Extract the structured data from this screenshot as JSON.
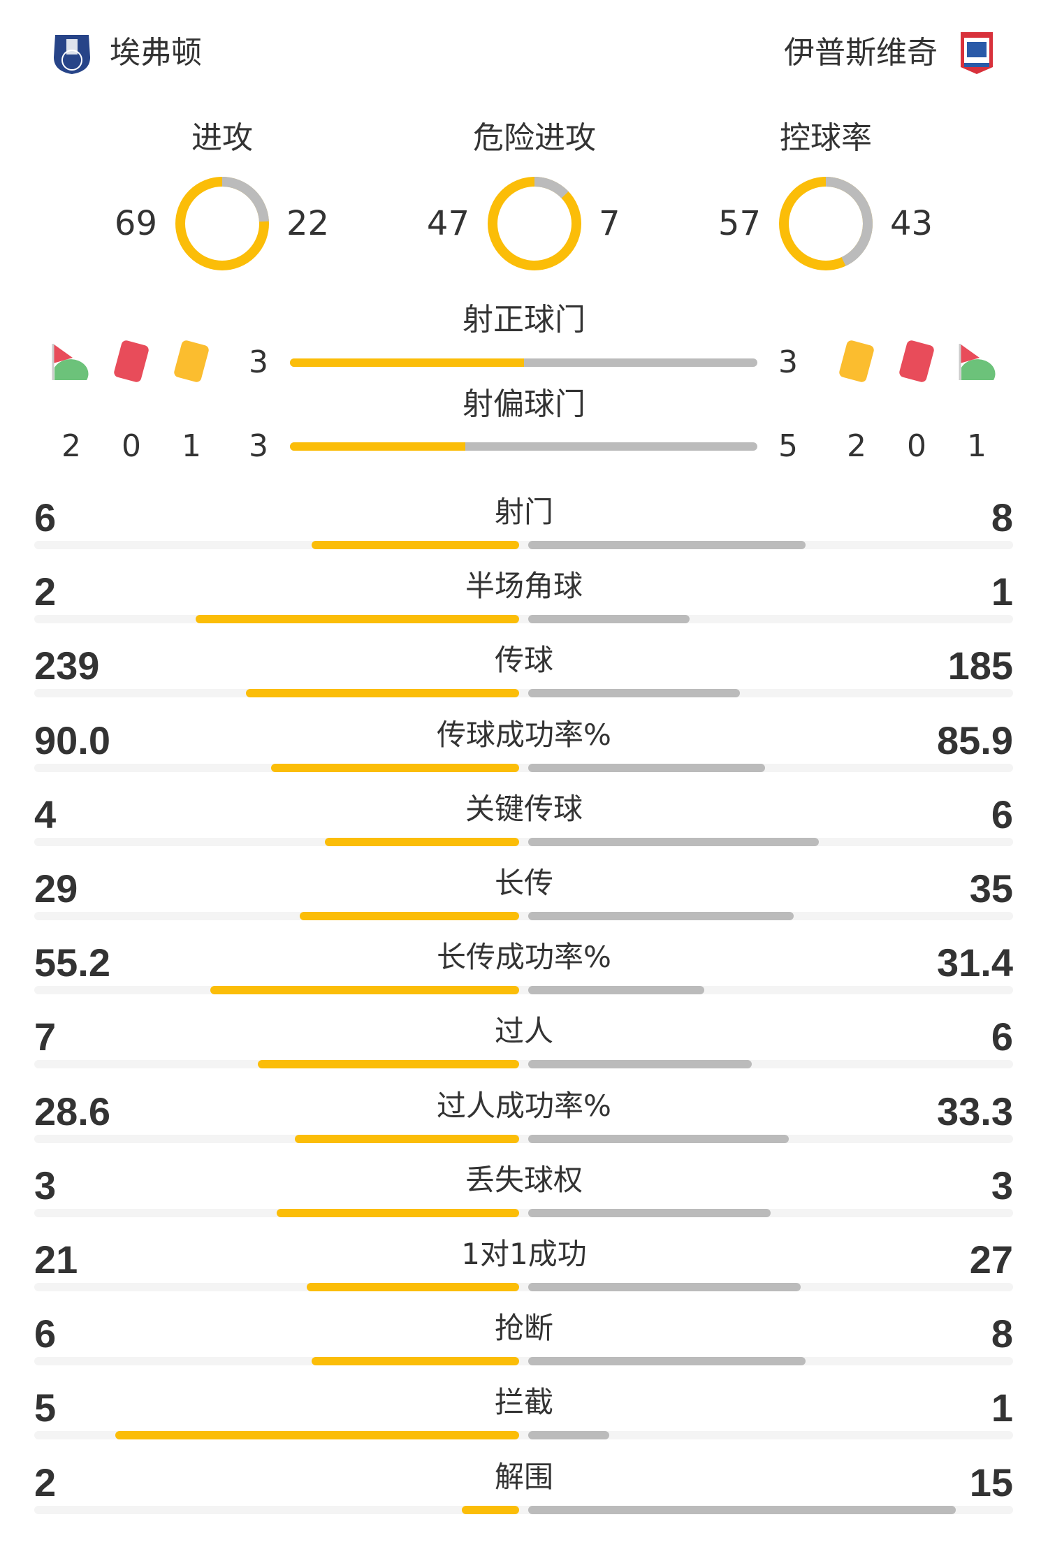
{
  "home": {
    "name": "埃弗顿",
    "logo_text": "Everton"
  },
  "away": {
    "name": "伊普斯维奇",
    "logo_text": "Ipswich Town"
  },
  "colors": {
    "home": "#fbbd08",
    "away": "#bbbbbb",
    "red_card": "#e84c5a",
    "yellow_card": "#fbbd2f",
    "corner_flag": "#e84c5a",
    "corner_arc": "#6cc27a"
  },
  "donuts": [
    {
      "title": "进攻",
      "home": 69,
      "away": 22
    },
    {
      "title": "危险进攻",
      "home": 47,
      "away": 7
    },
    {
      "title": "控球率",
      "home": 57,
      "away": 43
    }
  ],
  "shots_on_target": {
    "label": "射正球门",
    "home": 3,
    "away": 3
  },
  "shots_off_target": {
    "label": "射偏球门",
    "home": 3,
    "away": 5
  },
  "home_counts": {
    "corners": 2,
    "red_cards": 0,
    "yellow_cards": 1
  },
  "away_counts": {
    "yellow_cards": 2,
    "red_cards": 0,
    "corners": 1
  },
  "icons": {
    "corner": "corner-flag-icon",
    "red": "red-card-icon",
    "yellow": "yellow-card-icon"
  },
  "stats": [
    {
      "label": "射门",
      "home": "6",
      "away": "8"
    },
    {
      "label": "半场角球",
      "home": "2",
      "away": "1"
    },
    {
      "label": "传球",
      "home": "239",
      "away": "185"
    },
    {
      "label": "传球成功率%",
      "home": "90.0",
      "away": "85.9"
    },
    {
      "label": "关键传球",
      "home": "4",
      "away": "6"
    },
    {
      "label": "长传",
      "home": "29",
      "away": "35"
    },
    {
      "label": "长传成功率%",
      "home": "55.2",
      "away": "31.4"
    },
    {
      "label": "过人",
      "home": "7",
      "away": "6"
    },
    {
      "label": "过人成功率%",
      "home": "28.6",
      "away": "33.3"
    },
    {
      "label": "丢失球权",
      "home": "3",
      "away": "3"
    },
    {
      "label": "1对1成功",
      "home": "21",
      "away": "27"
    },
    {
      "label": "抢断",
      "home": "6",
      "away": "8"
    },
    {
      "label": "拦截",
      "home": "5",
      "away": "1"
    },
    {
      "label": "解围",
      "home": "2",
      "away": "15"
    }
  ]
}
